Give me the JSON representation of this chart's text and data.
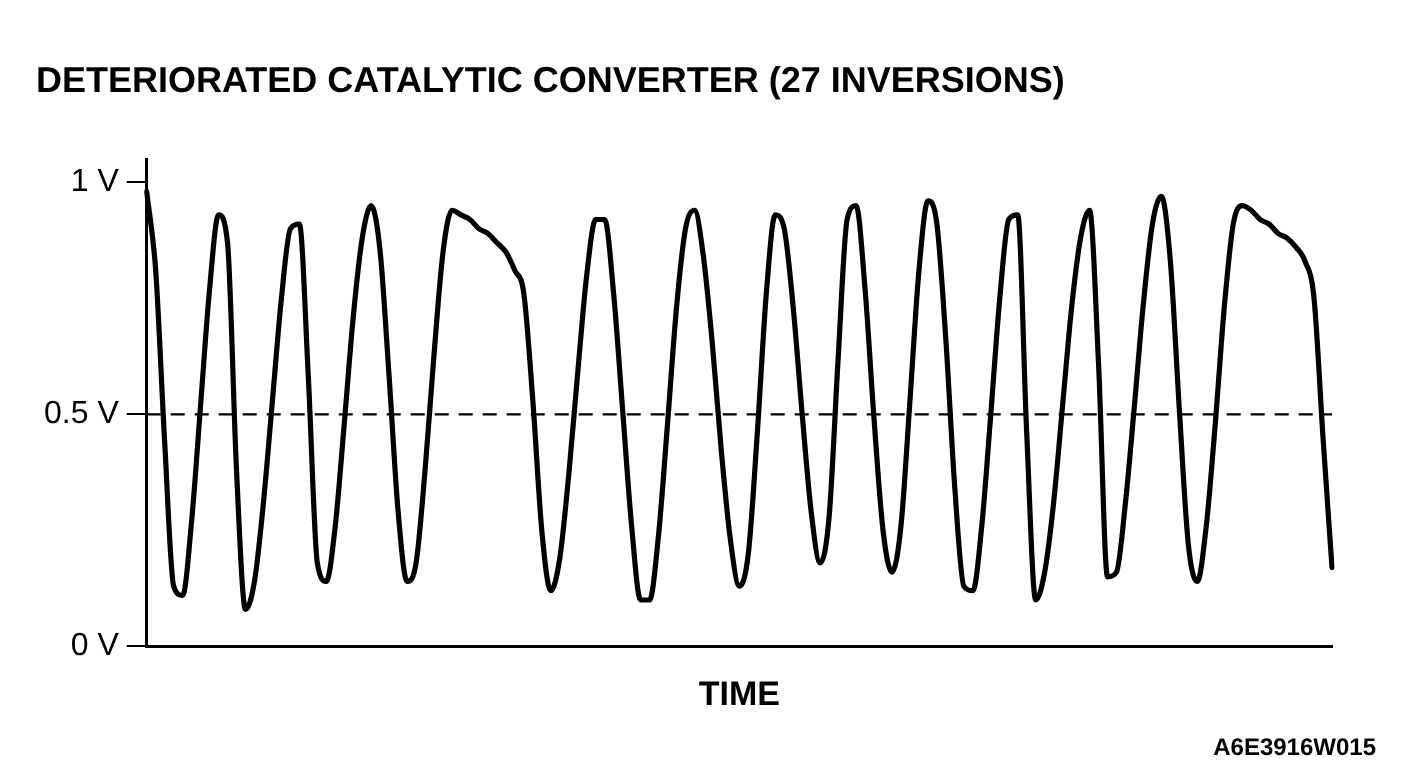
{
  "chart_data": {
    "type": "line",
    "title": "DETERIORATED CATALYTIC CONVERTER (27 INVERSIONS)",
    "xlabel": "TIME",
    "categories": [
      null,
      null,
      null,
      null,
      null,
      null,
      null,
      null,
      null,
      null,
      null,
      null,
      null,
      null,
      null,
      null,
      null,
      null,
      null,
      null,
      null,
      null,
      null,
      null,
      null,
      null,
      null,
      null,
      null,
      null,
      null,
      null,
      null,
      null,
      null,
      null,
      null,
      null,
      null,
      null,
      null,
      null,
      null,
      null,
      null,
      null,
      null,
      null,
      null,
      null,
      null,
      null,
      null,
      null,
      null,
      null,
      null,
      null,
      null,
      null,
      null,
      null,
      null,
      null,
      null,
      null,
      null,
      null,
      null,
      null,
      null,
      null,
      null,
      null,
      null,
      null,
      null,
      null,
      null,
      null,
      null,
      null,
      null,
      null,
      null,
      null,
      null,
      null,
      null,
      null,
      null,
      null,
      null,
      null,
      null,
      null,
      null,
      null,
      null,
      null,
      null,
      null,
      null,
      null,
      null,
      null,
      null,
      null,
      null,
      null,
      null,
      null,
      null,
      null,
      null,
      null,
      null,
      null,
      null,
      null,
      null,
      null,
      null,
      null,
      null,
      null,
      null,
      null,
      null,
      null,
      null,
      null,
      null
    ],
    "series": [
      {
        "color": "#000000",
        "values": [
          0.98,
          0.81,
          0.44,
          0.13,
          0.11,
          0.27,
          0.52,
          0.77,
          0.93,
          0.87,
          0.38,
          0.08,
          0.14,
          0.31,
          0.53,
          0.75,
          0.9,
          0.91,
          0.58,
          0.18,
          0.14,
          0.26,
          0.48,
          0.71,
          0.88,
          0.95,
          0.85,
          0.58,
          0.29,
          0.14,
          0.18,
          0.38,
          0.63,
          0.85,
          0.94,
          0.93,
          0.92,
          0.9,
          0.89,
          0.87,
          0.85,
          0.81,
          0.76,
          0.53,
          0.25,
          0.12,
          0.19,
          0.37,
          0.59,
          0.8,
          0.92,
          0.92,
          0.76,
          0.51,
          0.26,
          0.1,
          0.1,
          0.24,
          0.48,
          0.73,
          0.9,
          0.94,
          0.84,
          0.65,
          0.42,
          0.23,
          0.13,
          0.2,
          0.46,
          0.76,
          0.93,
          0.9,
          0.73,
          0.5,
          0.29,
          0.18,
          0.28,
          0.62,
          0.92,
          0.95,
          0.77,
          0.49,
          0.25,
          0.16,
          0.26,
          0.53,
          0.81,
          0.96,
          0.91,
          0.66,
          0.34,
          0.13,
          0.12,
          0.26,
          0.5,
          0.75,
          0.92,
          0.93,
          0.46,
          0.1,
          0.16,
          0.31,
          0.52,
          0.73,
          0.88,
          0.94,
          0.61,
          0.15,
          0.16,
          0.31,
          0.52,
          0.74,
          0.91,
          0.97,
          0.83,
          0.51,
          0.22,
          0.14,
          0.26,
          0.48,
          0.73,
          0.91,
          0.95,
          0.94,
          0.92,
          0.91,
          0.89,
          0.88,
          0.86,
          0.83,
          0.75,
          0.45,
          0.17
        ]
      }
    ],
    "ylim": [
      0,
      1.05
    ],
    "yticks": [
      {
        "value": 0,
        "label": "0 V"
      },
      {
        "value": 0.5,
        "label": "0.5 V"
      },
      {
        "value": 1,
        "label": "1 V"
      }
    ],
    "ref_lines": [
      {
        "axis": "y",
        "value": 0.5,
        "line_style": "dashed",
        "color": "#000000"
      }
    ],
    "grid": false,
    "legend": false,
    "marker": "none",
    "line_style": "solid",
    "annotations": [
      "A6E3916W015"
    ]
  }
}
